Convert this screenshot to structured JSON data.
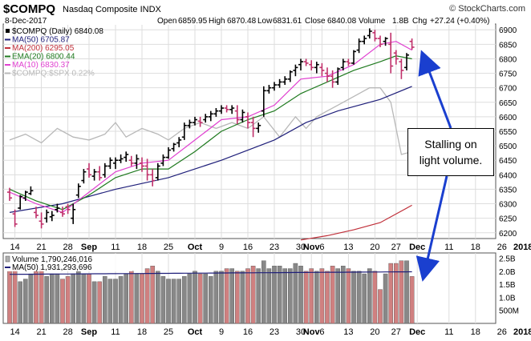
{
  "header": {
    "symbol": "$COMPQ",
    "name": "Nasdaq Composite INDX",
    "watermark": "© StockCharts.com",
    "date": "8-Dec-2017",
    "open_label": "Open",
    "open": "6859.95",
    "high_label": "High",
    "high": "6870.48",
    "low_label": "Low",
    "low": "6831.61",
    "close_label": "Close",
    "close": "6840.08",
    "volume_label": "Volume",
    "volume": "1.8B",
    "chg_label": "Chg",
    "chg": "+27.24 (+0.40%)"
  },
  "legend": [
    {
      "label": "$COMPQ (Daily) 6840.08",
      "color": "#000000",
      "marker": "dot"
    },
    {
      "label": "MA(50) 6705.87",
      "color": "#1f1f7a",
      "marker": "line"
    },
    {
      "label": "MA(200) 6295.05",
      "color": "#c0303a",
      "marker": "line"
    },
    {
      "label": "EMA(20) 6800.44",
      "color": "#1f7a1f",
      "marker": "line"
    },
    {
      "label": "MA(10) 6830.37",
      "color": "#e040d0",
      "marker": "line"
    },
    {
      "label": "$COMPQ:$SPX 0.22%",
      "color": "#b8b8b8",
      "marker": "line"
    }
  ],
  "volume_legend": [
    {
      "label": "Volume 1,790,246,016",
      "color": "#b0b0b0",
      "marker": "box"
    },
    {
      "label": "MA(50) 1,931,293,696",
      "color": "#1f1f7a",
      "marker": "line"
    }
  ],
  "callout": {
    "line1": "Stalling on",
    "line2": "light volume."
  },
  "colors": {
    "up": "#000000",
    "down": "#c0306a",
    "vol_up": "#888888",
    "vol_down": "#d08080",
    "arrow": "#1a3fcf",
    "grid": "#dddddd"
  },
  "chart_data": {
    "type": "ohlc",
    "price_axis": {
      "ticks": [
        6200,
        6250,
        6300,
        6350,
        6400,
        6450,
        6500,
        6550,
        6600,
        6650,
        6700,
        6750,
        6800,
        6850,
        6900
      ],
      "ylim": [
        6180,
        6920
      ]
    },
    "volume_axis": {
      "ticks": [
        "2.5B",
        "2.0B",
        "1.5B",
        "1.0B",
        "500M"
      ],
      "tick_values": [
        2.5,
        2.0,
        1.5,
        1.0,
        0.5
      ],
      "ylim": [
        0,
        2.7
      ]
    },
    "x_labels": [
      {
        "label": "14",
        "bar": 1
      },
      {
        "label": "21",
        "bar": 6
      },
      {
        "label": "28",
        "bar": 11
      },
      {
        "label": "Sep",
        "bar": 15,
        "bold": true
      },
      {
        "label": "11",
        "bar": 20
      },
      {
        "label": "18",
        "bar": 25
      },
      {
        "label": "25",
        "bar": 30
      },
      {
        "label": "Oct",
        "bar": 35,
        "bold": true
      },
      {
        "label": "9",
        "bar": 40
      },
      {
        "label": "16",
        "bar": 45
      },
      {
        "label": "23",
        "bar": 50
      },
      {
        "label": "30",
        "bar": 55
      },
      {
        "label": "Nov",
        "bar": 57,
        "bold": true
      },
      {
        "label": "6",
        "bar": 59
      },
      {
        "label": "13",
        "bar": 64
      },
      {
        "label": "20",
        "bar": 69
      },
      {
        "label": "27",
        "bar": 73
      },
      {
        "label": "Dec",
        "bar": 77,
        "bold": true
      },
      {
        "label": "11",
        "bar": 83
      },
      {
        "label": "18",
        "bar": 88
      },
      {
        "label": "26",
        "bar": 93
      },
      {
        "label": "2018",
        "bar": 97,
        "bold": true
      }
    ],
    "bars": [
      [
        6340,
        6355,
        6310,
        6320
      ],
      [
        6265,
        6280,
        6220,
        6230
      ],
      [
        6285,
        6330,
        6280,
        6325
      ],
      [
        6320,
        6345,
        6310,
        6340
      ],
      [
        6335,
        6360,
        6330,
        6345
      ],
      [
        6270,
        6290,
        6250,
        6260
      ],
      [
        6240,
        6270,
        6215,
        6230
      ],
      [
        6250,
        6280,
        6235,
        6270
      ],
      [
        6255,
        6275,
        6240,
        6260
      ],
      [
        6280,
        6300,
        6270,
        6285
      ],
      [
        6270,
        6290,
        6255,
        6265
      ],
      [
        6290,
        6300,
        6265,
        6280
      ],
      [
        6250,
        6300,
        6230,
        6280
      ],
      [
        6330,
        6370,
        6320,
        6360
      ],
      [
        6380,
        6420,
        6370,
        6410
      ],
      [
        6420,
        6440,
        6390,
        6400
      ],
      [
        6395,
        6420,
        6380,
        6410
      ],
      [
        6410,
        6430,
        6380,
        6390
      ],
      [
        6400,
        6440,
        6390,
        6430
      ],
      [
        6430,
        6460,
        6420,
        6450
      ],
      [
        6440,
        6460,
        6420,
        6450
      ],
      [
        6450,
        6470,
        6440,
        6455
      ],
      [
        6460,
        6480,
        6445,
        6470
      ],
      [
        6450,
        6465,
        6430,
        6440
      ],
      [
        6440,
        6470,
        6420,
        6455
      ],
      [
        6440,
        6460,
        6410,
        6430
      ],
      [
        6430,
        6455,
        6380,
        6400
      ],
      [
        6400,
        6420,
        6360,
        6380
      ],
      [
        6390,
        6440,
        6380,
        6430
      ],
      [
        6440,
        6470,
        6430,
        6460
      ],
      [
        6460,
        6495,
        6455,
        6485
      ],
      [
        6490,
        6510,
        6480,
        6505
      ],
      [
        6510,
        6530,
        6495,
        6520
      ],
      [
        6530,
        6580,
        6520,
        6570
      ],
      [
        6570,
        6590,
        6560,
        6580
      ],
      [
        6580,
        6600,
        6570,
        6590
      ],
      [
        6585,
        6600,
        6565,
        6580
      ],
      [
        6590,
        6610,
        6580,
        6600
      ],
      [
        6600,
        6620,
        6585,
        6610
      ],
      [
        6610,
        6630,
        6600,
        6620
      ],
      [
        6620,
        6640,
        6610,
        6630
      ],
      [
        6630,
        6640,
        6615,
        6625
      ],
      [
        6625,
        6640,
        6610,
        6630
      ],
      [
        6620,
        6640,
        6575,
        6590
      ],
      [
        6590,
        6625,
        6580,
        6615
      ],
      [
        6600,
        6615,
        6560,
        6580
      ],
      [
        6580,
        6600,
        6530,
        6560
      ],
      [
        6560,
        6580,
        6545,
        6570
      ],
      [
        6620,
        6705,
        6600,
        6690
      ],
      [
        6690,
        6710,
        6680,
        6700
      ],
      [
        6700,
        6720,
        6690,
        6710
      ],
      [
        6710,
        6730,
        6700,
        6720
      ],
      [
        6720,
        6740,
        6710,
        6730
      ],
      [
        6730,
        6760,
        6720,
        6755
      ],
      [
        6760,
        6780,
        6740,
        6770
      ],
      [
        6780,
        6800,
        6760,
        6790
      ],
      [
        6790,
        6800,
        6775,
        6785
      ],
      [
        6780,
        6795,
        6760,
        6770
      ],
      [
        6770,
        6790,
        6750,
        6780
      ],
      [
        6770,
        6785,
        6740,
        6760
      ],
      [
        6750,
        6770,
        6720,
        6740
      ],
      [
        6740,
        6760,
        6700,
        6720
      ],
      [
        6720,
        6770,
        6710,
        6765
      ],
      [
        6770,
        6800,
        6760,
        6790
      ],
      [
        6790,
        6800,
        6775,
        6785
      ],
      [
        6785,
        6830,
        6780,
        6825
      ],
      [
        6830,
        6870,
        6820,
        6860
      ],
      [
        6860,
        6880,
        6850,
        6870
      ],
      [
        6880,
        6905,
        6870,
        6895
      ],
      [
        6890,
        6900,
        6860,
        6870
      ],
      [
        6870,
        6880,
        6840,
        6850
      ],
      [
        6860,
        6875,
        6845,
        6870
      ],
      [
        6850,
        6890,
        6750,
        6775
      ],
      [
        6820,
        6830,
        6780,
        6800
      ],
      [
        6790,
        6800,
        6730,
        6760
      ],
      [
        6770,
        6820,
        6760,
        6813
      ],
      [
        6860,
        6870,
        6831,
        6840
      ]
    ],
    "ma50": [
      [
        0,
        6270
      ],
      [
        10,
        6300
      ],
      [
        20,
        6350
      ],
      [
        30,
        6390
      ],
      [
        40,
        6450
      ],
      [
        50,
        6520
      ],
      [
        56,
        6580
      ],
      [
        62,
        6620
      ],
      [
        70,
        6660
      ],
      [
        76,
        6705
      ]
    ],
    "ma200": [
      [
        55,
        6175
      ],
      [
        60,
        6190
      ],
      [
        65,
        6210
      ],
      [
        70,
        6235
      ],
      [
        76,
        6295
      ]
    ],
    "ema20": [
      [
        0,
        6350
      ],
      [
        5,
        6310
      ],
      [
        10,
        6280
      ],
      [
        15,
        6330
      ],
      [
        20,
        6390
      ],
      [
        25,
        6420
      ],
      [
        30,
        6420
      ],
      [
        35,
        6480
      ],
      [
        40,
        6550
      ],
      [
        45,
        6590
      ],
      [
        50,
        6620
      ],
      [
        55,
        6680
      ],
      [
        60,
        6720
      ],
      [
        65,
        6760
      ],
      [
        70,
        6790
      ],
      [
        73,
        6810
      ],
      [
        76,
        6800
      ]
    ],
    "ma10": [
      [
        0,
        6340
      ],
      [
        5,
        6300
      ],
      [
        10,
        6270
      ],
      [
        15,
        6340
      ],
      [
        20,
        6410
      ],
      [
        25,
        6440
      ],
      [
        30,
        6450
      ],
      [
        35,
        6520
      ],
      [
        40,
        6590
      ],
      [
        45,
        6600
      ],
      [
        50,
        6640
      ],
      [
        55,
        6730
      ],
      [
        60,
        6740
      ],
      [
        65,
        6780
      ],
      [
        70,
        6850
      ],
      [
        73,
        6860
      ],
      [
        76,
        6830
      ]
    ],
    "ratio": [
      [
        0,
        6520
      ],
      [
        3,
        6540
      ],
      [
        6,
        6510
      ],
      [
        9,
        6560
      ],
      [
        12,
        6530
      ],
      [
        15,
        6520
      ],
      [
        18,
        6540
      ],
      [
        20,
        6580
      ],
      [
        22,
        6530
      ],
      [
        25,
        6560
      ],
      [
        28,
        6540
      ],
      [
        30,
        6520
      ],
      [
        33,
        6560
      ],
      [
        36,
        6580
      ],
      [
        39,
        6560
      ],
      [
        42,
        6580
      ],
      [
        45,
        6560
      ],
      [
        48,
        6600
      ],
      [
        51,
        6530
      ],
      [
        54,
        6600
      ],
      [
        56,
        6560
      ],
      [
        58,
        6600
      ],
      [
        60,
        6620
      ],
      [
        62,
        6640
      ],
      [
        64,
        6660
      ],
      [
        66,
        6680
      ],
      [
        68,
        6700
      ],
      [
        70,
        6700
      ],
      [
        72,
        6650
      ],
      [
        74,
        6470
      ],
      [
        76,
        6480
      ]
    ],
    "volume": [
      2.0,
      2.1,
      1.6,
      1.7,
      1.9,
      2.0,
      2.1,
      1.8,
      1.9,
      1.9,
      1.7,
      1.8,
      1.9,
      2.0,
      1.9,
      1.9,
      1.6,
      1.6,
      1.8,
      1.7,
      1.7,
      1.8,
      1.9,
      2.0,
      1.9,
      1.9,
      2.1,
      2.2,
      2.0,
      1.8,
      1.7,
      1.7,
      1.7,
      1.8,
      1.9,
      2.0,
      1.9,
      1.9,
      1.8,
      2.0,
      2.0,
      2.1,
      2.1,
      2.0,
      2.0,
      2.1,
      2.2,
      2.1,
      2.4,
      2.1,
      2.2,
      2.2,
      2.1,
      2.1,
      2.3,
      2.2,
      2.0,
      2.1,
      2.0,
      2.1,
      2.0,
      2.2,
      2.1,
      2.2,
      2.1,
      2.0,
      2.0,
      1.9,
      2.1,
      2.0,
      1.3,
      1.9,
      2.3,
      2.3,
      2.4,
      2.4,
      1.8
    ],
    "volume_ma50": 1.93
  }
}
